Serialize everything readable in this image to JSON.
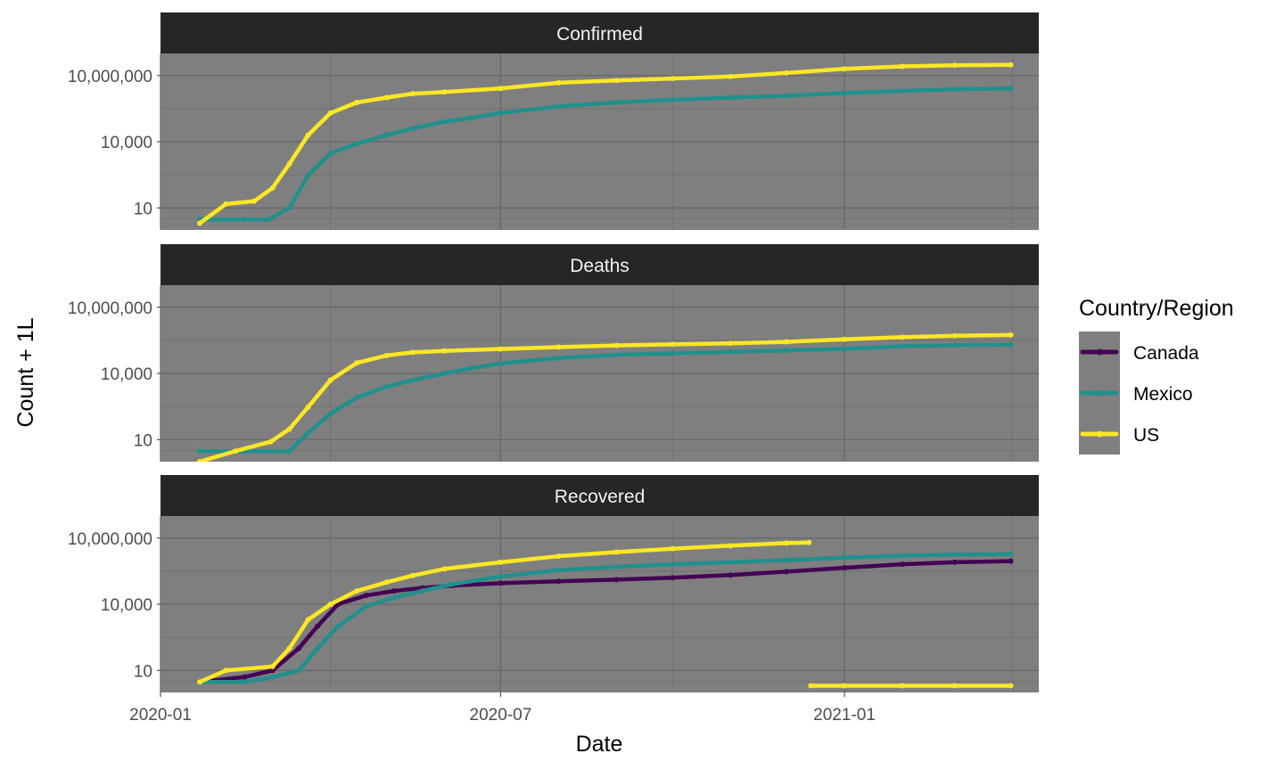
{
  "chart_data": {
    "type": "line",
    "facets": [
      "Confirmed",
      "Deaths",
      "Recovered"
    ],
    "xlabel": "Date",
    "ylabel": "Count + 1L",
    "xlim": [
      "2020-01-01",
      "2021-04-15"
    ],
    "x_ticks": [
      "2020-01",
      "2020-07",
      "2021-01"
    ],
    "y_scale": "log10",
    "ylim": [
      1,
      100000000
    ],
    "y_ticks": [
      10,
      10000,
      10000000
    ],
    "y_tick_labels": [
      "10",
      "10,000",
      "10,000,000"
    ],
    "grid": true,
    "legend": {
      "title": "Country/Region",
      "placement": "right",
      "entries": [
        "Canada",
        "Mexico",
        "US"
      ]
    },
    "colors": {
      "Canada": "#440154",
      "Mexico": "#21908C",
      "US": "#FDE725"
    },
    "series": [
      {
        "facet": "Confirmed",
        "name": "Mexico",
        "x": [
          "2020-01-22",
          "2020-02-15",
          "2020-02-28",
          "2020-03-10",
          "2020-03-20",
          "2020-04-01",
          "2020-04-15",
          "2020-05-01",
          "2020-05-15",
          "2020-06-01",
          "2020-06-15",
          "2020-07-01",
          "2020-08-01",
          "2020-09-01",
          "2020-10-01",
          "2020-11-01",
          "2020-12-01",
          "2021-01-01",
          "2021-02-01",
          "2021-03-01",
          "2021-03-31"
        ],
        "values": [
          3,
          3,
          3,
          10,
          300,
          3000,
          8000,
          20000,
          40000,
          80000,
          120000,
          200000,
          400000,
          600000,
          800000,
          1000000,
          1200000,
          1600000,
          2000000,
          2400000,
          2600000
        ]
      },
      {
        "facet": "Confirmed",
        "name": "US",
        "x": [
          "2020-01-22",
          "2020-02-05",
          "2020-02-20",
          "2020-03-01",
          "2020-03-10",
          "2020-03-20",
          "2020-04-01",
          "2020-04-15",
          "2020-05-01",
          "2020-05-15",
          "2020-06-01",
          "2020-07-01",
          "2020-08-01",
          "2020-09-01",
          "2020-10-01",
          "2020-11-01",
          "2020-12-01",
          "2021-01-01",
          "2021-02-01",
          "2021-03-01",
          "2021-03-31"
        ],
        "values": [
          2,
          15,
          20,
          80,
          1000,
          20000,
          200000,
          600000,
          1000000,
          1500000,
          1800000,
          2600000,
          4700000,
          6000000,
          7300000,
          9000000,
          13000000,
          20000000,
          26000000,
          29000000,
          30500000
        ]
      },
      {
        "facet": "Deaths",
        "name": "Mexico",
        "x": [
          "2020-01-22",
          "2020-02-15",
          "2020-03-10",
          "2020-03-20",
          "2020-04-01",
          "2020-04-15",
          "2020-05-01",
          "2020-05-15",
          "2020-06-01",
          "2020-06-15",
          "2020-07-01",
          "2020-08-01",
          "2020-09-01",
          "2020-10-01",
          "2020-11-01",
          "2020-12-01",
          "2021-01-01",
          "2021-02-01",
          "2021-03-01",
          "2021-03-31"
        ],
        "values": [
          3,
          3,
          3,
          20,
          150,
          800,
          2500,
          5000,
          10000,
          17000,
          28000,
          50000,
          70000,
          80000,
          95000,
          110000,
          130000,
          170000,
          190000,
          200000
        ]
      },
      {
        "facet": "Deaths",
        "name": "US",
        "x": [
          "2020-01-22",
          "2020-02-10",
          "2020-02-29",
          "2020-03-10",
          "2020-03-20",
          "2020-04-01",
          "2020-04-15",
          "2020-05-01",
          "2020-05-15",
          "2020-06-01",
          "2020-07-01",
          "2020-08-01",
          "2020-09-01",
          "2020-10-01",
          "2020-11-01",
          "2020-12-01",
          "2021-01-01",
          "2021-02-01",
          "2021-03-01",
          "2021-03-31"
        ],
        "values": [
          1,
          3,
          8,
          30,
          300,
          5000,
          30000,
          65000,
          90000,
          105000,
          128000,
          155000,
          185000,
          208000,
          230000,
          270000,
          350000,
          440000,
          510000,
          550000
        ]
      },
      {
        "facet": "Recovered",
        "name": "Canada",
        "x": [
          "2020-01-22",
          "2020-02-15",
          "2020-03-01",
          "2020-03-15",
          "2020-03-25",
          "2020-04-05",
          "2020-04-20",
          "2020-05-05",
          "2020-05-20",
          "2020-06-05",
          "2020-07-01",
          "2020-08-01",
          "2020-09-01",
          "2020-10-01",
          "2020-11-01",
          "2020-12-01",
          "2021-01-01",
          "2021-02-01",
          "2021-03-01",
          "2021-03-31"
        ],
        "values": [
          3,
          5,
          10,
          100,
          1000,
          10000,
          25000,
          40000,
          55000,
          70000,
          90000,
          110000,
          130000,
          160000,
          210000,
          300000,
          450000,
          650000,
          800000,
          900000
        ]
      },
      {
        "facet": "Recovered",
        "name": "Mexico",
        "x": [
          "2020-01-22",
          "2020-02-15",
          "2020-03-01",
          "2020-03-15",
          "2020-03-25",
          "2020-04-05",
          "2020-04-20",
          "2020-05-05",
          "2020-05-20",
          "2020-06-05",
          "2020-07-01",
          "2020-08-01",
          "2020-09-01",
          "2020-10-01",
          "2020-11-01",
          "2020-12-01",
          "2021-01-01",
          "2021-02-01",
          "2021-03-01",
          "2021-03-31"
        ],
        "values": [
          3,
          3,
          5,
          10,
          100,
          1000,
          8000,
          20000,
          40000,
          80000,
          180000,
          350000,
          500000,
          650000,
          800000,
          1000000,
          1300000,
          1600000,
          1800000,
          1900000
        ]
      },
      {
        "facet": "Recovered",
        "name": "US",
        "x": [
          "2020-01-22",
          "2020-02-05",
          "2020-03-01",
          "2020-03-10",
          "2020-03-20",
          "2020-04-01",
          "2020-04-15",
          "2020-05-01",
          "2020-05-15",
          "2020-06-01",
          "2020-07-01",
          "2020-08-01",
          "2020-09-01",
          "2020-10-01",
          "2020-11-01",
          "2020-12-01",
          "2020-12-13"
        ],
        "values": [
          3,
          10,
          15,
          100,
          2000,
          10000,
          40000,
          100000,
          200000,
          400000,
          800000,
          1500000,
          2300000,
          3300000,
          4500000,
          5900000,
          6300000
        ]
      },
      {
        "facet": "Recovered",
        "name": "US",
        "x": [
          "2020-12-14",
          "2021-01-01",
          "2021-02-01",
          "2021-03-01",
          "2021-03-31"
        ],
        "values": [
          2,
          2,
          2,
          2,
          2
        ]
      }
    ]
  }
}
